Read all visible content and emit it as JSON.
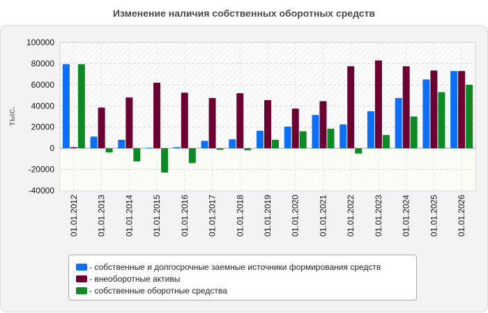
{
  "chart_data": {
    "type": "bar",
    "title": "Изменение наличия собственных оборотных средств",
    "ylabel": "тыс.",
    "xlabel": "",
    "ylim": [
      -40000,
      100000
    ],
    "yticks": [
      -40000,
      -20000,
      0,
      20000,
      40000,
      60000,
      80000,
      100000
    ],
    "grid": true,
    "legend_position": "bottom",
    "categories": [
      "01.01.2012",
      "01.01.2013",
      "01.01.2014",
      "01.01.2015",
      "01.01.2016",
      "01.01.2017",
      "01.01.2018",
      "01.01.2019",
      "01.01.2020",
      "01.01.2021",
      "01.01.2022",
      "01.01.2023",
      "01.01.2024",
      "01.01.2025",
      "01.01.2026"
    ],
    "series": [
      {
        "name": "собственные и долгосрочные заемные источники формирования средств",
        "color": "#0d6ef6",
        "values": [
          79500,
          11000,
          8000,
          500,
          1000,
          7000,
          8500,
          16500,
          20500,
          31500,
          22500,
          35000,
          47500,
          65000,
          73000
        ]
      },
      {
        "name": "внеоборотные активы",
        "color": "#6b0033",
        "values": [
          1000,
          38500,
          48000,
          62000,
          52500,
          47500,
          52000,
          45500,
          37500,
          44500,
          77500,
          83000,
          77500,
          73500,
          73000
        ]
      },
      {
        "name": "собственные оборотные средства",
        "color": "#0d8a26",
        "values": [
          79500,
          -4000,
          -12500,
          -23000,
          -14000,
          -1500,
          -2000,
          8000,
          16000,
          18500,
          -5000,
          12500,
          30000,
          53000,
          60000
        ]
      }
    ]
  }
}
